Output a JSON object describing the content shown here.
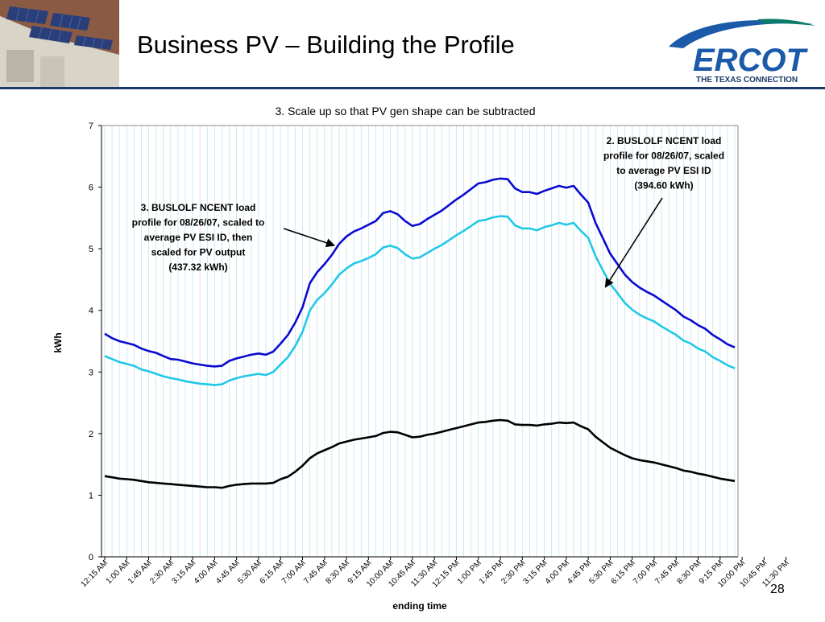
{
  "slide": {
    "title": "Business PV – Building the Profile",
    "page_number": "28"
  },
  "logo": {
    "text": "ERCOT",
    "tagline": "THE TEXAS CONNECTION",
    "colors": {
      "primary": "#1a5aa8",
      "accent": "#0a7a6a"
    }
  },
  "chart_data": {
    "type": "line",
    "title": "3. Scale up so that PV gen shape can be subtracted",
    "xlabel": "ending time",
    "ylabel": "kWh",
    "ylim": [
      0,
      7
    ],
    "yticks": [
      0,
      1,
      2,
      3,
      4,
      5,
      6,
      7
    ],
    "grid": "vertical",
    "x_labels": [
      "12:15 AM",
      "1:00 AM",
      "1:45 AM",
      "2:30 AM",
      "3:15 AM",
      "4:00 AM",
      "4:45 AM",
      "5:30 AM",
      "6:15 AM",
      "7:00 AM",
      "7:45 AM",
      "8:30 AM",
      "9:15 AM",
      "10:00 AM",
      "10:45 AM",
      "11:30 AM",
      "12:15 PM",
      "1:00 PM",
      "1:45 PM",
      "2:30 PM",
      "3:15 PM",
      "4:00 PM",
      "4:45 PM",
      "5:30 PM",
      "6:15 PM",
      "7:00 PM",
      "7:45 PM",
      "8:30 PM",
      "9:15 PM",
      "10:00 PM",
      "10:45 PM",
      "11:30 PM"
    ],
    "series": [
      {
        "color": "#0a0ad0",
        "values": [
          3.62,
          3.55,
          3.5,
          3.47,
          3.44,
          3.38,
          3.34,
          3.31,
          3.26,
          3.21,
          3.2,
          3.17,
          3.14,
          3.12,
          3.1,
          3.09,
          3.1,
          3.18,
          3.22,
          3.25,
          3.28,
          3.3,
          3.28,
          3.33,
          3.46,
          3.6,
          3.8,
          4.05,
          4.44,
          4.62,
          4.75,
          4.9,
          5.08,
          5.2,
          5.28,
          5.33,
          5.39,
          5.45,
          5.58,
          5.61,
          5.56,
          5.45,
          5.37,
          5.4,
          5.48,
          5.55,
          5.62,
          5.71,
          5.8,
          5.88,
          5.97,
          6.06,
          6.08,
          6.12,
          6.14,
          6.13,
          5.98,
          5.92,
          5.92,
          5.89,
          5.94,
          5.98,
          6.02,
          5.99,
          6.02,
          5.88,
          5.75,
          5.42,
          5.17,
          4.92,
          4.75,
          4.58,
          4.46,
          4.37,
          4.3,
          4.24,
          4.16,
          4.08,
          4.0,
          3.9,
          3.84,
          3.76,
          3.7,
          3.6,
          3.53,
          3.45,
          3.4
        ]
      },
      {
        "color": "#22c8e8",
        "values": [
          3.26,
          3.21,
          3.16,
          3.13,
          3.1,
          3.04,
          3.01,
          2.97,
          2.93,
          2.9,
          2.88,
          2.85,
          2.83,
          2.81,
          2.8,
          2.79,
          2.8,
          2.86,
          2.9,
          2.93,
          2.95,
          2.97,
          2.95,
          3.0,
          3.12,
          3.24,
          3.42,
          3.65,
          4.0,
          4.17,
          4.28,
          4.42,
          4.58,
          4.68,
          4.76,
          4.8,
          4.85,
          4.91,
          5.02,
          5.05,
          5.01,
          4.91,
          4.84,
          4.86,
          4.93,
          5.0,
          5.06,
          5.14,
          5.22,
          5.29,
          5.37,
          5.45,
          5.47,
          5.51,
          5.53,
          5.52,
          5.38,
          5.33,
          5.33,
          5.3,
          5.35,
          5.38,
          5.42,
          5.39,
          5.42,
          5.29,
          5.18,
          4.88,
          4.65,
          4.43,
          4.28,
          4.12,
          4.01,
          3.93,
          3.87,
          3.82,
          3.74,
          3.67,
          3.6,
          3.51,
          3.46,
          3.38,
          3.33,
          3.24,
          3.18,
          3.11,
          3.06
        ]
      },
      {
        "color": "#000000",
        "values": [
          1.31,
          1.29,
          1.27,
          1.26,
          1.25,
          1.23,
          1.21,
          1.2,
          1.19,
          1.18,
          1.17,
          1.16,
          1.15,
          1.14,
          1.13,
          1.13,
          1.12,
          1.15,
          1.17,
          1.18,
          1.19,
          1.19,
          1.19,
          1.2,
          1.26,
          1.3,
          1.38,
          1.48,
          1.6,
          1.68,
          1.73,
          1.78,
          1.84,
          1.87,
          1.9,
          1.92,
          1.94,
          1.96,
          2.01,
          2.03,
          2.02,
          1.98,
          1.94,
          1.95,
          1.98,
          2.0,
          2.03,
          2.06,
          2.09,
          2.12,
          2.15,
          2.18,
          2.19,
          2.21,
          2.22,
          2.21,
          2.15,
          2.14,
          2.14,
          2.13,
          2.15,
          2.16,
          2.18,
          2.17,
          2.18,
          2.12,
          2.07,
          1.95,
          1.86,
          1.77,
          1.71,
          1.65,
          1.6,
          1.57,
          1.55,
          1.53,
          1.5,
          1.47,
          1.44,
          1.4,
          1.38,
          1.35,
          1.33,
          1.3,
          1.27,
          1.25,
          1.23
        ]
      }
    ],
    "annotations": [
      {
        "id": "a3",
        "lines": [
          "3. BUSLOLF NCENT load",
          "profile for 08/26/07, scaled to",
          "average PV ESI ID, then",
          "scaled for PV output",
          "(437.32 kWh)"
        ]
      },
      {
        "id": "a2",
        "lines": [
          "2. BUSLOLF NCENT load",
          "profile for 08/26/07, scaled",
          "to average PV ESI ID",
          "(394.60 kWh)"
        ]
      }
    ]
  }
}
